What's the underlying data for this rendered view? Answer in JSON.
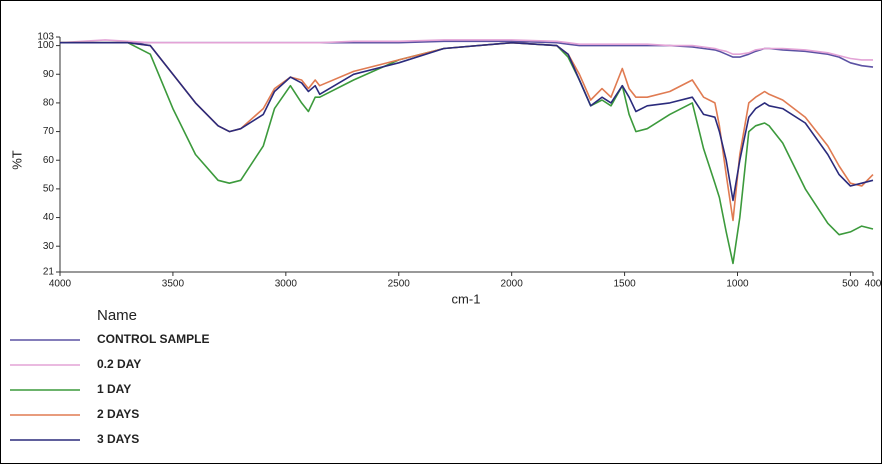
{
  "chart_data": {
    "type": "line",
    "y_label": "%T",
    "x_label": "cm-1",
    "legend_title": "Name",
    "xlim": [
      4000,
      400
    ],
    "ylim": [
      21,
      103
    ],
    "xticks": [
      4000,
      3500,
      3000,
      2500,
      2000,
      1500,
      1000,
      500,
      400
    ],
    "yticks": [
      21,
      30,
      40,
      50,
      60,
      70,
      80,
      90,
      100,
      103
    ],
    "x": [
      4000,
      3800,
      3700,
      3600,
      3500,
      3400,
      3300,
      3250,
      3200,
      3100,
      3050,
      2980,
      2930,
      2900,
      2870,
      2850,
      2700,
      2500,
      2300,
      2000,
      1800,
      1750,
      1700,
      1650,
      1600,
      1560,
      1510,
      1480,
      1450,
      1400,
      1300,
      1200,
      1150,
      1100,
      1080,
      1050,
      1020,
      990,
      950,
      920,
      880,
      860,
      800,
      700,
      600,
      550,
      500,
      450,
      400
    ],
    "series": [
      {
        "name": "CONTROL SAMPLE",
        "color": "#5b52a3",
        "values": [
          101,
          101,
          101,
          101,
          101,
          101,
          101,
          101,
          101,
          101,
          101,
          101,
          101,
          101,
          101,
          101,
          101,
          101,
          101.5,
          101.5,
          101,
          100.5,
          100,
          100,
          100,
          100,
          100,
          100,
          100,
          100,
          100,
          99.5,
          99,
          98.5,
          98,
          97,
          96,
          96,
          97,
          98,
          99,
          99,
          98.5,
          98,
          97,
          96,
          94,
          93,
          92.5
        ]
      },
      {
        "name": "0.2 DAY",
        "color": "#e3a3d6",
        "values": [
          101,
          102,
          101.5,
          101,
          101,
          101,
          101,
          101,
          101,
          101,
          101,
          101,
          101,
          101,
          101,
          101,
          101.5,
          101.5,
          102,
          102,
          101.5,
          101,
          100.5,
          100.5,
          100.5,
          100.5,
          100.5,
          100.5,
          100.5,
          100.5,
          100,
          100,
          99.5,
          99,
          98.5,
          98,
          97,
          97,
          97.5,
          98.5,
          99,
          99,
          99,
          98.5,
          97.5,
          96.5,
          95.5,
          95,
          95
        ]
      },
      {
        "name": "1 DAY",
        "color": "#3c9a3c",
        "values": [
          101,
          101,
          101,
          97,
          78,
          62,
          53,
          52,
          53,
          65,
          78,
          86,
          80,
          77,
          82,
          82,
          88,
          95,
          99,
          101,
          100,
          96,
          88,
          79,
          81,
          79,
          86,
          76,
          70,
          71,
          76,
          80,
          64,
          52,
          47,
          35,
          24,
          40,
          70,
          72,
          73,
          72,
          66,
          50,
          38,
          34,
          35,
          37,
          36
        ]
      },
      {
        "name": "2 DAYS",
        "color": "#e07b52",
        "values": [
          101,
          101,
          101,
          100,
          90,
          80,
          72,
          70,
          71,
          78,
          85,
          89,
          88,
          85,
          88,
          86,
          91,
          95,
          99,
          101,
          100,
          97,
          90,
          81,
          85,
          82,
          92,
          85,
          82,
          82,
          84,
          88,
          82,
          80,
          72,
          55,
          39,
          62,
          80,
          82,
          84,
          83,
          81,
          75,
          65,
          58,
          52,
          51,
          55
        ]
      },
      {
        "name": "3 DAYS",
        "color": "#2b2b7c",
        "values": [
          101,
          101,
          101,
          100,
          90,
          80,
          72,
          70,
          71,
          76,
          84,
          89,
          87,
          84,
          86,
          83,
          90,
          94,
          99,
          101,
          100,
          97,
          88,
          79,
          82,
          80,
          86,
          82,
          77,
          79,
          80,
          82,
          76,
          75,
          70,
          60,
          46,
          60,
          75,
          78,
          80,
          79,
          78,
          73,
          62,
          55,
          51,
          52,
          53
        ]
      }
    ]
  }
}
